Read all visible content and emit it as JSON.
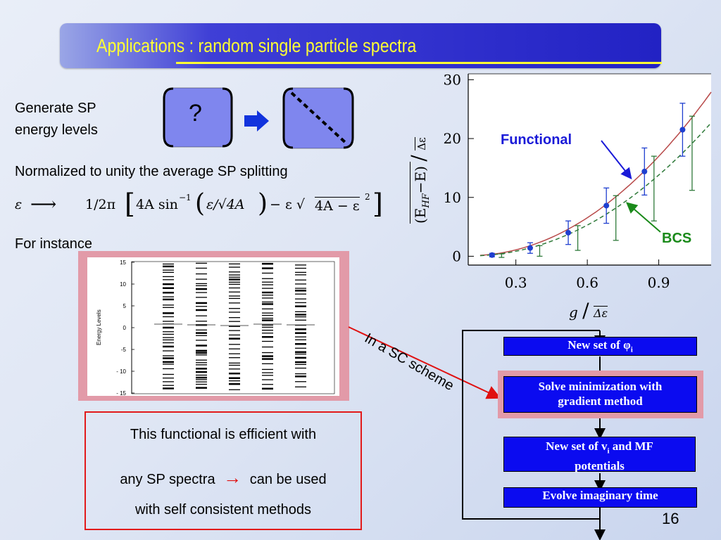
{
  "slide": {
    "title": "Applications : random single particle spectra",
    "page_number": "16"
  },
  "left": {
    "generate_line1": "Generate   SP",
    "generate_line2": "energy levels",
    "question_mark": "?",
    "normalized_text": "Normalized to unity the average SP splitting",
    "formula": {
      "lhs": "ε",
      "arrow": "⟶",
      "rhs_start": "1/2π",
      "inner": "4A sin",
      "sup": "−1",
      "paren": "ε/√4A",
      "minus_part": "− ε √",
      "root_body": "4A − ε",
      "root_sup": "2"
    },
    "for_instance": "For instance"
  },
  "energy_plot": {
    "ylabel": "Energy Levels",
    "y_ticks": [
      "15",
      "10",
      "5",
      "0",
      "-5",
      "- 10",
      "- 15"
    ],
    "columns": 5
  },
  "main_plot": {
    "y_ticks": [
      "0",
      "10",
      "20",
      "30"
    ],
    "x_ticks": [
      "0.3",
      "0.6",
      "0.9"
    ],
    "ylabel_main": "(E",
    "ylabel_sub": "HF",
    "ylabel_rest": "−E)",
    "ylabel_den": "Δε",
    "xlabel_num": "g",
    "xlabel_den": "Δε",
    "label_functional": "Functional",
    "label_bcs": "BCS",
    "colors": {
      "functional": "#b84a4a",
      "bcs": "#2f7a3a",
      "points": "#1f3fcf"
    }
  },
  "chart_data": {
    "type": "line",
    "x": [
      0.2,
      0.36,
      0.52,
      0.68,
      0.84,
      1.0
    ],
    "series": [
      {
        "name": "Functional",
        "values": [
          0.2,
          1.4,
          4.0,
          8.6,
          14.4,
          21.5
        ],
        "errors": [
          0.3,
          0.9,
          2.0,
          3.0,
          4.0,
          4.5
        ]
      },
      {
        "name": "BCS",
        "values": [
          0.1,
          0.9,
          3.1,
          6.5,
          11.5,
          17.5
        ],
        "errors": [
          0.3,
          0.9,
          2.1,
          3.8,
          5.5,
          6.3
        ]
      }
    ],
    "xlim": [
      0.1,
      1.12
    ],
    "ylim": [
      -1.5,
      31
    ]
  },
  "flow": {
    "side_label": "In a SC scheme",
    "box1": "New set of φ",
    "box1_sub": "i",
    "box2_line1": "Solve minimization with",
    "box2_line2": "gradient method",
    "box3_line1": "New set of v",
    "box3_sub": "i",
    "box3_rest": " and MF",
    "box3_line2": "potentials",
    "box4": "Evolve imaginary time"
  },
  "conclusion": {
    "line1": "This functional is efficient with",
    "line2_a": "any SP spectra",
    "line2_arrow": "→",
    "line2_b": "can be used",
    "line3": "with self consistent methods"
  }
}
